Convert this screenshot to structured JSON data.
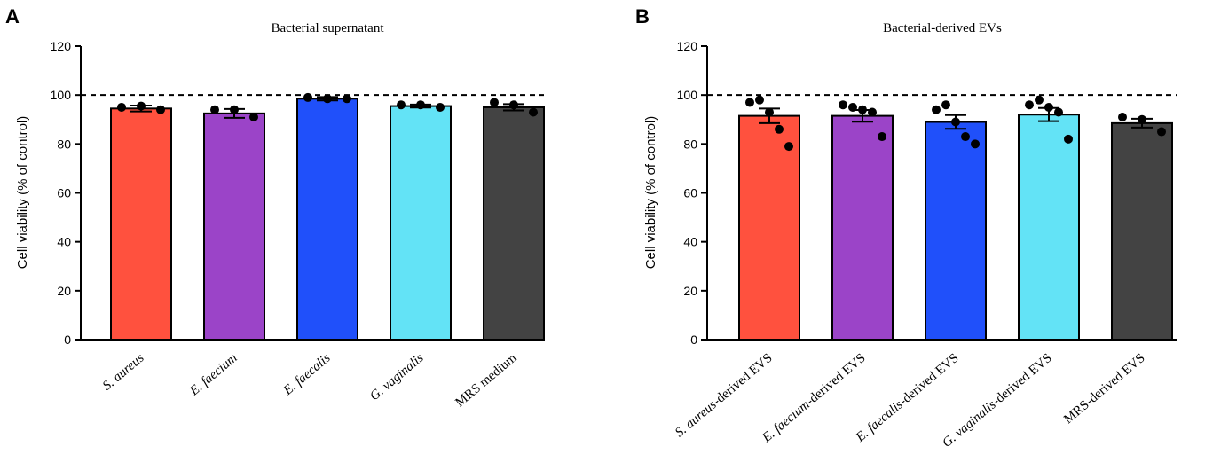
{
  "chart_data": [
    {
      "type": "bar",
      "panel": "A",
      "title": "Bacterial supernatant",
      "ylabel": "Cell viability  (% of control)",
      "ylim": [
        0,
        120
      ],
      "yticks": [
        0,
        20,
        40,
        60,
        80,
        100,
        120
      ],
      "reference_line": 100,
      "categories": [
        [
          {
            "t": "S. aureus",
            "i": true
          }
        ],
        [
          {
            "t": "E. faecium",
            "i": true
          }
        ],
        [
          {
            "t": "E. faecalis",
            "i": true
          }
        ],
        [
          {
            "t": "G. vaginalis",
            "i": true
          }
        ],
        [
          {
            "t": "MRS  medium",
            "i": false
          }
        ]
      ],
      "values": [
        94.5,
        92.5,
        98.5,
        95.5,
        95
      ],
      "errors": [
        1.2,
        1.8,
        0.7,
        0.6,
        1.3
      ],
      "points": [
        [
          95,
          95.5,
          94
        ],
        [
          94,
          94,
          91
        ],
        [
          99,
          98.5,
          98.5
        ],
        [
          96,
          96,
          95
        ],
        [
          97,
          96,
          93
        ]
      ],
      "colors": [
        "#ff513e",
        "#9b44c8",
        "#2050fa",
        "#63e3f6",
        "#434343"
      ]
    },
    {
      "type": "bar",
      "panel": "B",
      "title": "Bacterial-derived EVs",
      "ylabel": "Cell viability  (% of control)",
      "ylim": [
        0,
        120
      ],
      "yticks": [
        0,
        20,
        40,
        60,
        80,
        100,
        120
      ],
      "reference_line": 100,
      "categories": [
        [
          {
            "t": "S. aureus",
            "i": true
          },
          {
            "t": "-derived EVS",
            "i": false
          }
        ],
        [
          {
            "t": "E. faecium",
            "i": true
          },
          {
            "t": "-derived EVS",
            "i": false
          }
        ],
        [
          {
            "t": "E. faecalis",
            "i": true
          },
          {
            "t": "-derived EVS",
            "i": false
          }
        ],
        [
          {
            "t": "G. vaginalis",
            "i": true
          },
          {
            "t": "-derived EVS",
            "i": false
          }
        ],
        [
          {
            "t": "MRS-derived EVS",
            "i": false
          }
        ]
      ],
      "values": [
        91.5,
        91.5,
        89,
        92,
        88.5
      ],
      "errors": [
        3.0,
        2.4,
        2.8,
        2.7,
        1.8
      ],
      "points": [
        [
          97,
          98,
          93,
          86,
          79
        ],
        [
          96,
          95,
          94,
          93,
          83
        ],
        [
          94,
          96,
          89,
          83,
          80
        ],
        [
          96,
          98,
          95,
          93,
          82
        ],
        [
          91,
          90,
          85
        ]
      ],
      "colors": [
        "#ff513e",
        "#9b44c8",
        "#2050fa",
        "#63e3f6",
        "#434343"
      ]
    }
  ]
}
